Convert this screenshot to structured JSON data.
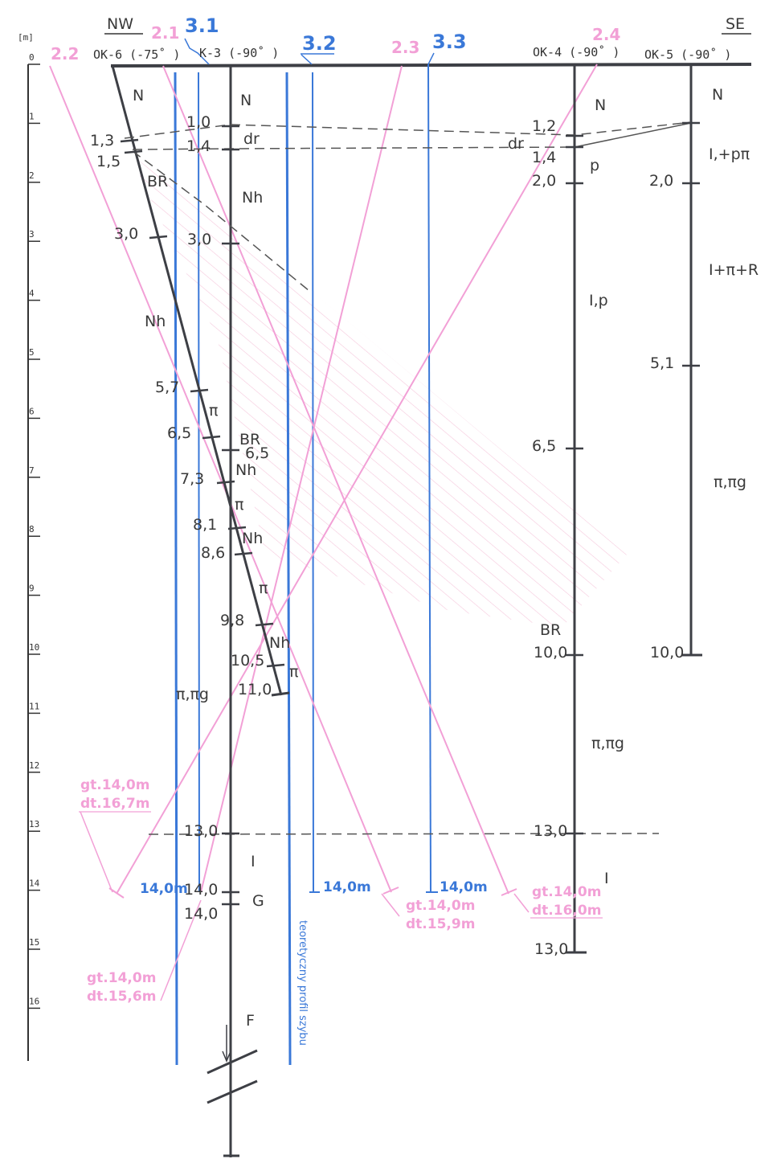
{
  "header": {
    "nw": "NW",
    "se": "SE",
    "unit": "[m]"
  },
  "depth_scale": [
    "0",
    "1",
    "2",
    "3",
    "4",
    "5",
    "6",
    "7",
    "8",
    "9",
    "10",
    "11",
    "12",
    "13",
    "14",
    "15",
    "16"
  ],
  "boreholes": {
    "ok6": "OK-6 (-75˚ )",
    "k3": "K-3 (-90˚ )",
    "ok4": "OK-4 (-90˚ )",
    "ok5": "OK-5 (-90˚ )"
  },
  "blue_wells": {
    "w31": "3.1",
    "w32": "3.2",
    "w33": "3.3",
    "end_31": "14,0m",
    "end_32": "14,0m",
    "end_33": "14,0m"
  },
  "pink_wells": {
    "w21": "2.1",
    "w22": "2.2",
    "w23": "2.3",
    "w24": "2.4",
    "note22_gt": "gt.14,0m",
    "note22_dt": "dt.16,7m",
    "note21_gt": "gt.14,0m",
    "note21_dt": "dt.15,6m",
    "note23_gt": "gt.14,0m",
    "note23_dt": "dt.15,9m",
    "note24_gt": "gt.14,0m",
    "note24_dt": "dt.16,0m"
  },
  "profile_label": "teoretyczny profil szybu",
  "ok6_labels": {
    "n": "N",
    "d13": "1,3",
    "d15": "1,5",
    "br": "BR",
    "d30": "3,0",
    "nh": "Nh",
    "d57": "5,7",
    "pi1": "π",
    "d65": "6,5",
    "br2": "BR",
    "d73": "7,3",
    "pi2": "π",
    "d81": "8,1",
    "d86": "8,6",
    "pi3": "π",
    "d98": "9,8",
    "nh3": "Nh",
    "d105": "10,5",
    "pi4": "π",
    "d110": "11,0",
    "pipig": "π,πg"
  },
  "k3_labels": {
    "n": "N",
    "d10": "1,0",
    "dr": "dr",
    "d14": "1,4",
    "nh": "Nh",
    "d30": "3,0",
    "d65": "6,5",
    "nh2": "Nh",
    "nh3": "Nh",
    "d130": "13,0",
    "i": "I",
    "d140a": "14,0",
    "g": "G",
    "d140b": "14,0",
    "f": "F"
  },
  "ok4_labels": {
    "n": "N",
    "d12": "1,2",
    "dr": "dr",
    "d14": "1,4",
    "p": "p",
    "d20": "2,0",
    "ip": "I,p",
    "d65": "6,5",
    "br": "BR",
    "d100": "10,0",
    "pipig": "π,πg",
    "d130": "13,0",
    "i": "I",
    "d130b": "13,0"
  },
  "ok5_labels": {
    "n": "N",
    "ipp": "I,+pπ",
    "d20": "2,0",
    "ipr": "I+π+R",
    "d51": "5,1",
    "pipig": "π,πg",
    "d100": "10,0"
  },
  "colors": {
    "dark": "#3d3f45",
    "blue": "#3a78d8",
    "pink": "#f2a0d6",
    "hatch": "#f4bfd6"
  }
}
